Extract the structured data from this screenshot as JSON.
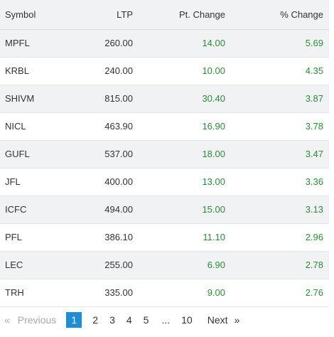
{
  "table": {
    "headers": {
      "symbol": "Symbol",
      "ltp": "LTP",
      "pt_change": "Pt. Change",
      "pct_change": "% Change"
    },
    "rows": [
      {
        "symbol": "MPFL",
        "ltp": "260.00",
        "pt_change": "14.00",
        "pct_change": "5.69"
      },
      {
        "symbol": "KRBL",
        "ltp": "240.00",
        "pt_change": "10.00",
        "pct_change": "4.35"
      },
      {
        "symbol": "SHIVM",
        "ltp": "815.00",
        "pt_change": "30.40",
        "pct_change": "3.87"
      },
      {
        "symbol": "NICL",
        "ltp": "463.90",
        "pt_change": "16.90",
        "pct_change": "3.78"
      },
      {
        "symbol": "GUFL",
        "ltp": "537.00",
        "pt_change": "18.00",
        "pct_change": "3.47"
      },
      {
        "symbol": "JFL",
        "ltp": "400.00",
        "pt_change": "13.00",
        "pct_change": "3.36"
      },
      {
        "symbol": "ICFC",
        "ltp": "494.00",
        "pt_change": "15.00",
        "pct_change": "3.13"
      },
      {
        "symbol": "PFL",
        "ltp": "386.10",
        "pt_change": "11.10",
        "pct_change": "2.96"
      },
      {
        "symbol": "LEC",
        "ltp": "255.00",
        "pt_change": "6.90",
        "pct_change": "2.78"
      },
      {
        "symbol": "TRH",
        "ltp": "335.00",
        "pt_change": "9.00",
        "pct_change": "2.76"
      }
    ]
  },
  "pagination": {
    "prev_arrow": "«",
    "prev_label": "Previous",
    "pages": [
      "1",
      "2",
      "3",
      "4",
      "5"
    ],
    "ellipsis": "...",
    "last_page": "10",
    "next_label": "Next",
    "next_arrow": "»",
    "active_page": "1"
  },
  "colors": {
    "positive": "#2e8b3a",
    "active_page_bg": "#1f8dd6",
    "row_shade": "#f1f2f4"
  }
}
